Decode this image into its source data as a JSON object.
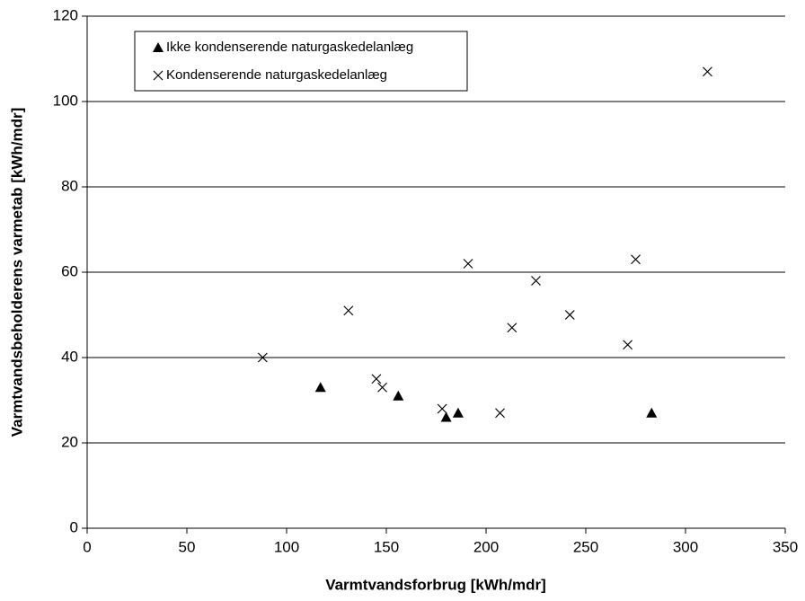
{
  "chart_data": {
    "type": "scatter",
    "xlabel": "Varmtvandsforbrug  [kWh/mdr]",
    "ylabel": "Varmtvandsbeholderens varmetab  [kWh/mdr]",
    "xlim": [
      0,
      350
    ],
    "xticks": [
      0,
      50,
      100,
      150,
      200,
      250,
      300,
      350
    ],
    "ylim": [
      0,
      120
    ],
    "yticks": [
      0,
      20,
      40,
      60,
      80,
      100,
      120
    ],
    "grid": true,
    "legend": "upper left",
    "series": [
      {
        "name": "Ikke kondenserende naturgaskedelanlæg",
        "color": "#000000",
        "marker": "triangle",
        "x": [
          117,
          156,
          180,
          186,
          283
        ],
        "values": [
          33,
          31,
          26,
          27,
          27
        ]
      },
      {
        "name": "Kondenserende naturgaskedelanlæg",
        "color": "#000000",
        "marker": "x",
        "x": [
          88,
          131,
          145,
          148,
          178,
          191,
          213,
          225,
          207,
          242,
          271,
          275,
          311
        ],
        "values": [
          40,
          51,
          35,
          33,
          28,
          62,
          47,
          58,
          27,
          50,
          43,
          63,
          107
        ]
      }
    ]
  }
}
